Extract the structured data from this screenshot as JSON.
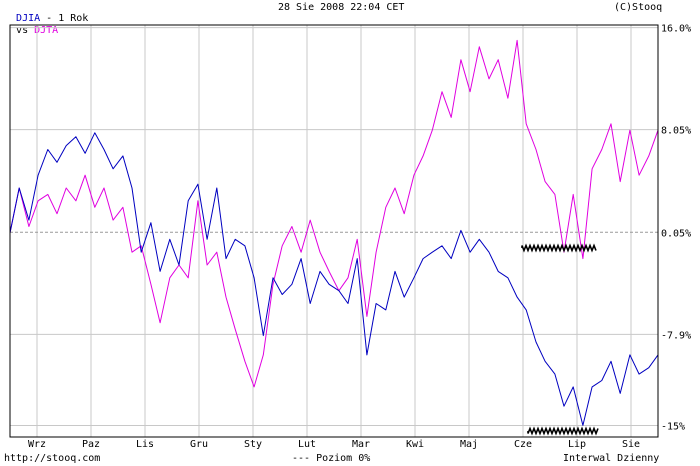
{
  "header": {
    "symbol": "DJIA",
    "period": " - 1 Rok",
    "vs": "vs",
    "compare_symbol": "DJTA",
    "timestamp": "28 Sie 2008 22:04 CET",
    "copyright": "(C)Stooq"
  },
  "footer": {
    "url": "http://stooq.com",
    "level_legend": "--- Poziom 0%",
    "interval": "Interwal Dzienny"
  },
  "colors": {
    "djia": "#0000c0",
    "djta": "#e000e0",
    "grid": "#c8c8c8",
    "baseline": "#9a9a9a"
  },
  "chart_data": {
    "type": "line",
    "x_tick_labels": [
      "Wrz",
      "Paz",
      "Lis",
      "Gru",
      "Sty",
      "Lut",
      "Mar",
      "Kwi",
      "Maj",
      "Cze",
      "Lip",
      "Sie"
    ],
    "y_tick_labels": [
      "16.0%",
      "8.05%",
      "0.05%",
      "-7.9%",
      "-15%"
    ],
    "y_ticks": [
      16.0,
      8.05,
      0.05,
      -7.9,
      -15
    ],
    "ylim": [
      -15.9,
      16.2
    ],
    "baseline": 0.05,
    "series": [
      {
        "name": "DJIA",
        "x": [
          0.0,
          0.17,
          0.35,
          0.52,
          0.7,
          0.87,
          1.04,
          1.22,
          1.39,
          1.57,
          1.74,
          1.91,
          2.09,
          2.26,
          2.43,
          2.61,
          2.78,
          2.96,
          3.13,
          3.3,
          3.48,
          3.65,
          3.83,
          4.0,
          4.17,
          4.35,
          4.52,
          4.69,
          4.87,
          5.04,
          5.22,
          5.39,
          5.56,
          5.74,
          5.91,
          6.09,
          6.26,
          6.43,
          6.61,
          6.78,
          6.96,
          7.13,
          7.3,
          7.48,
          7.65,
          7.82,
          8.0,
          8.17,
          8.35,
          8.52,
          8.69,
          8.87,
          9.04,
          9.22,
          9.39,
          9.56,
          9.74,
          9.91,
          10.09,
          10.26,
          10.43,
          10.61,
          10.78,
          10.96,
          11.13,
          11.3,
          11.48,
          11.65,
          11.83,
          12.0
        ],
        "values": [
          0.0,
          3.5,
          1.0,
          4.5,
          6.5,
          5.5,
          6.8,
          7.5,
          6.2,
          7.8,
          6.5,
          5.0,
          6.0,
          3.5,
          -1.5,
          0.8,
          -3.0,
          -0.5,
          -2.5,
          2.5,
          3.8,
          -0.5,
          3.5,
          -2.0,
          -0.5,
          -1.0,
          -3.5,
          -8.0,
          -3.5,
          -4.8,
          -4.0,
          -2.0,
          -5.5,
          -3.0,
          -4.0,
          -4.5,
          -5.5,
          -2.0,
          -9.5,
          -5.5,
          -6.0,
          -3.0,
          -5.0,
          -3.5,
          -2.0,
          -1.5,
          -1.0,
          -2.0,
          0.2,
          -1.5,
          -0.5,
          -1.5,
          -3.0,
          -3.5,
          -5.0,
          -6.0,
          -8.5,
          -10.0,
          -11.0,
          -13.5,
          -12.0,
          -15.0,
          -12.0,
          -11.5,
          -10.0,
          -12.5,
          -9.5,
          -11.0,
          -10.5,
          -9.5
        ]
      },
      {
        "name": "DJTA",
        "x": [
          0.0,
          0.17,
          0.35,
          0.52,
          0.7,
          0.87,
          1.04,
          1.22,
          1.39,
          1.57,
          1.74,
          1.91,
          2.09,
          2.26,
          2.43,
          2.61,
          2.78,
          2.96,
          3.13,
          3.3,
          3.48,
          3.65,
          3.83,
          4.0,
          4.17,
          4.35,
          4.52,
          4.69,
          4.87,
          5.04,
          5.22,
          5.39,
          5.56,
          5.74,
          5.91,
          6.09,
          6.26,
          6.43,
          6.61,
          6.78,
          6.96,
          7.13,
          7.3,
          7.48,
          7.65,
          7.82,
          8.0,
          8.17,
          8.35,
          8.52,
          8.69,
          8.87,
          9.04,
          9.22,
          9.39,
          9.56,
          9.74,
          9.91,
          10.09,
          10.26,
          10.43,
          10.61,
          10.78,
          10.96,
          11.13,
          11.3,
          11.48,
          11.65,
          11.83,
          12.0
        ],
        "values": [
          0.0,
          3.5,
          0.5,
          2.5,
          3.0,
          1.5,
          3.5,
          2.5,
          4.5,
          2.0,
          3.5,
          1.0,
          2.0,
          -1.5,
          -1.0,
          -4.0,
          -7.0,
          -3.5,
          -2.5,
          -3.5,
          2.5,
          -2.5,
          -1.5,
          -5.0,
          -7.5,
          -10.0,
          -12.0,
          -9.5,
          -4.0,
          -1.0,
          0.5,
          -1.5,
          1.0,
          -1.5,
          -3.0,
          -4.5,
          -3.5,
          -0.5,
          -6.5,
          -1.5,
          2.0,
          3.5,
          1.5,
          4.5,
          6.0,
          8.0,
          11.0,
          9.0,
          13.5,
          11.0,
          14.5,
          12.0,
          13.5,
          10.5,
          15.0,
          8.5,
          6.5,
          4.0,
          3.0,
          -1.5,
          3.0,
          -2.0,
          5.0,
          6.5,
          8.5,
          4.0,
          8.0,
          4.5,
          6.0,
          8.0
        ]
      }
    ]
  }
}
